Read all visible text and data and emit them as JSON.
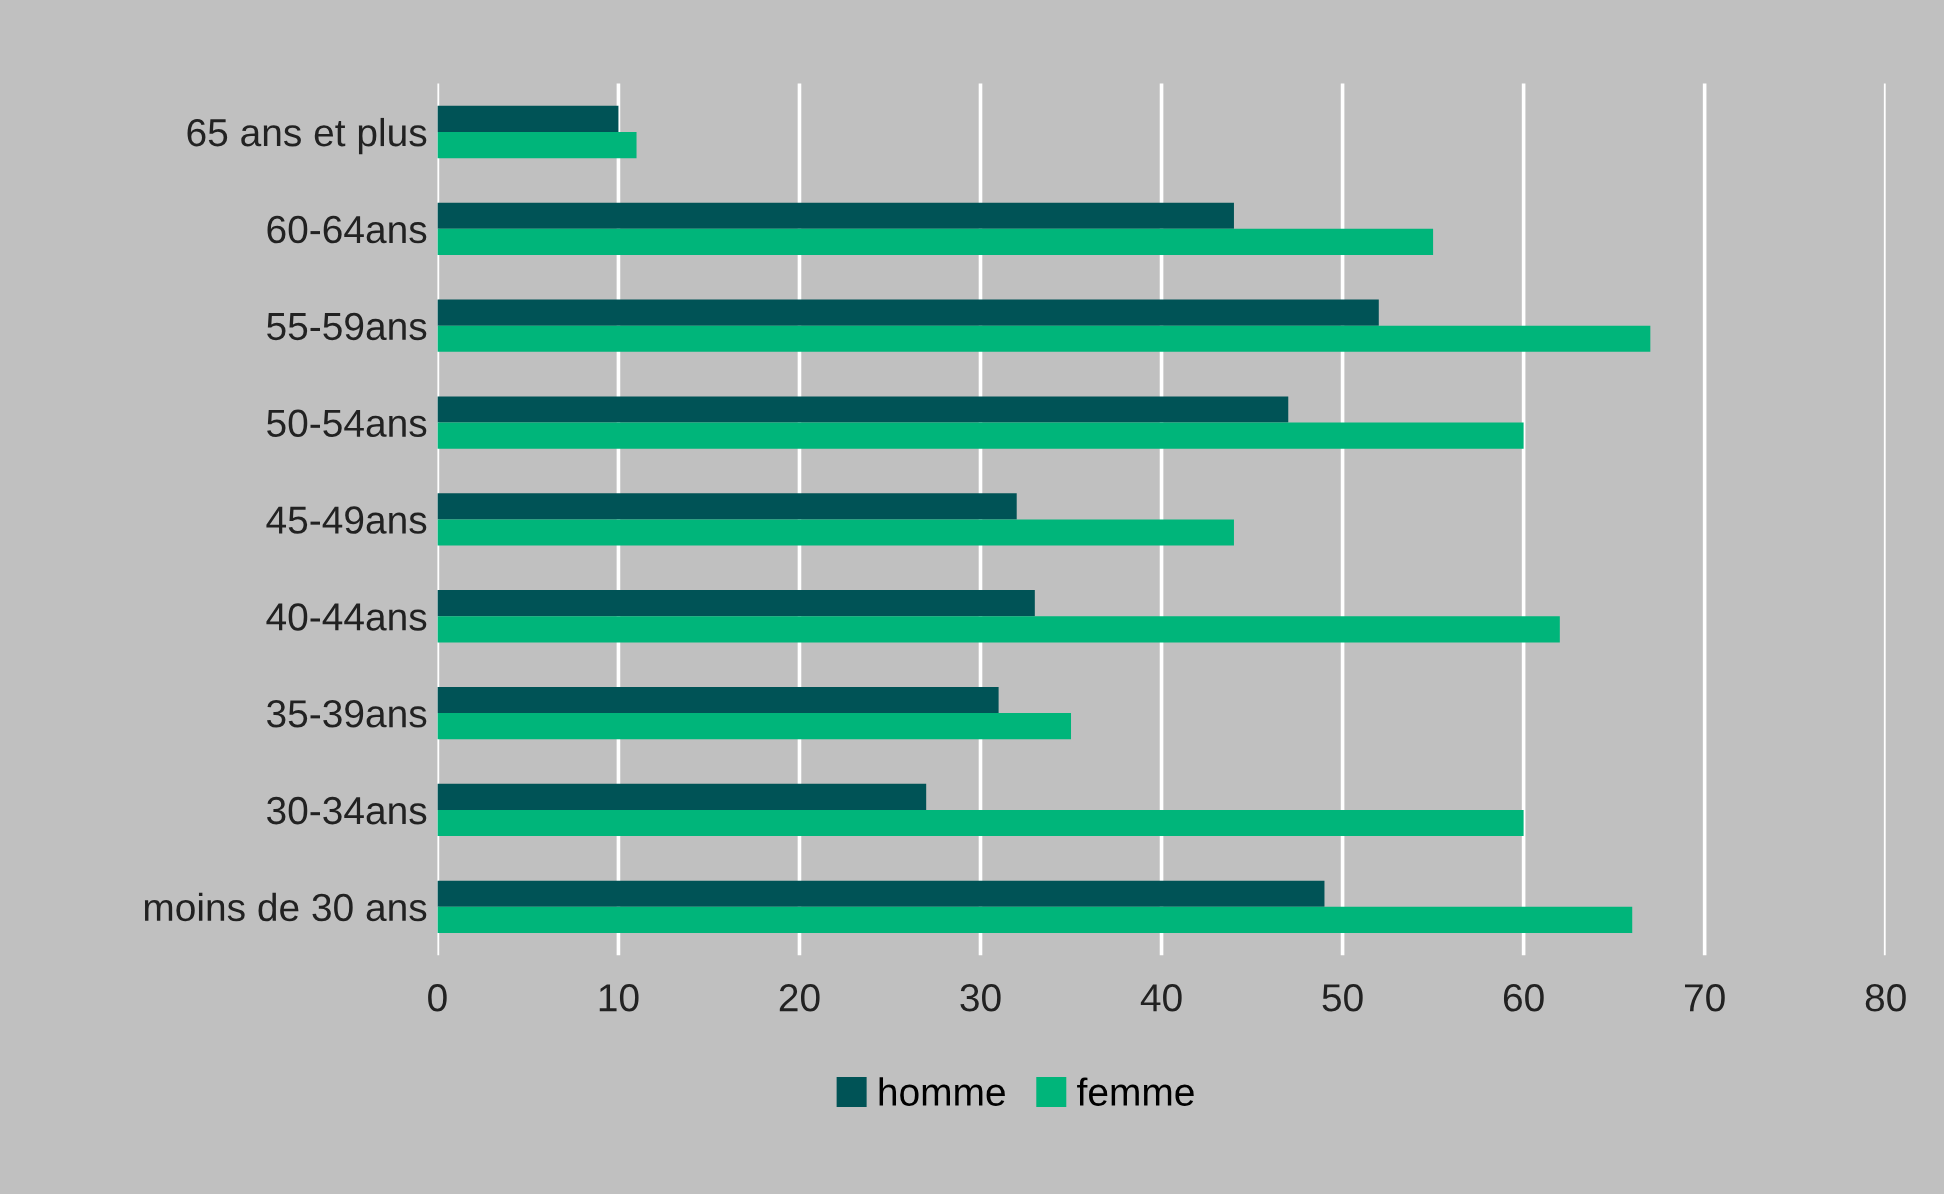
{
  "chart_data": {
    "type": "bar",
    "orientation": "horizontal",
    "categories": [
      "65 ans et plus",
      "60-64ans",
      "55-59ans",
      "50-54ans",
      "45-49ans",
      "40-44ans",
      "35-39ans",
      "30-34ans",
      "moins de 30 ans"
    ],
    "series": [
      {
        "name": "homme",
        "color": "#005356",
        "values": [
          10,
          44,
          52,
          47,
          32,
          33,
          31,
          27,
          49
        ]
      },
      {
        "name": "femme",
        "color": "#00b57a",
        "values": [
          11,
          55,
          67,
          60,
          44,
          62,
          35,
          60,
          66
        ]
      }
    ],
    "xlim": [
      0,
      80
    ],
    "xticks": [
      0,
      10,
      20,
      30,
      40,
      50,
      60,
      70,
      80
    ],
    "grid": "x",
    "legend": "bottom"
  }
}
